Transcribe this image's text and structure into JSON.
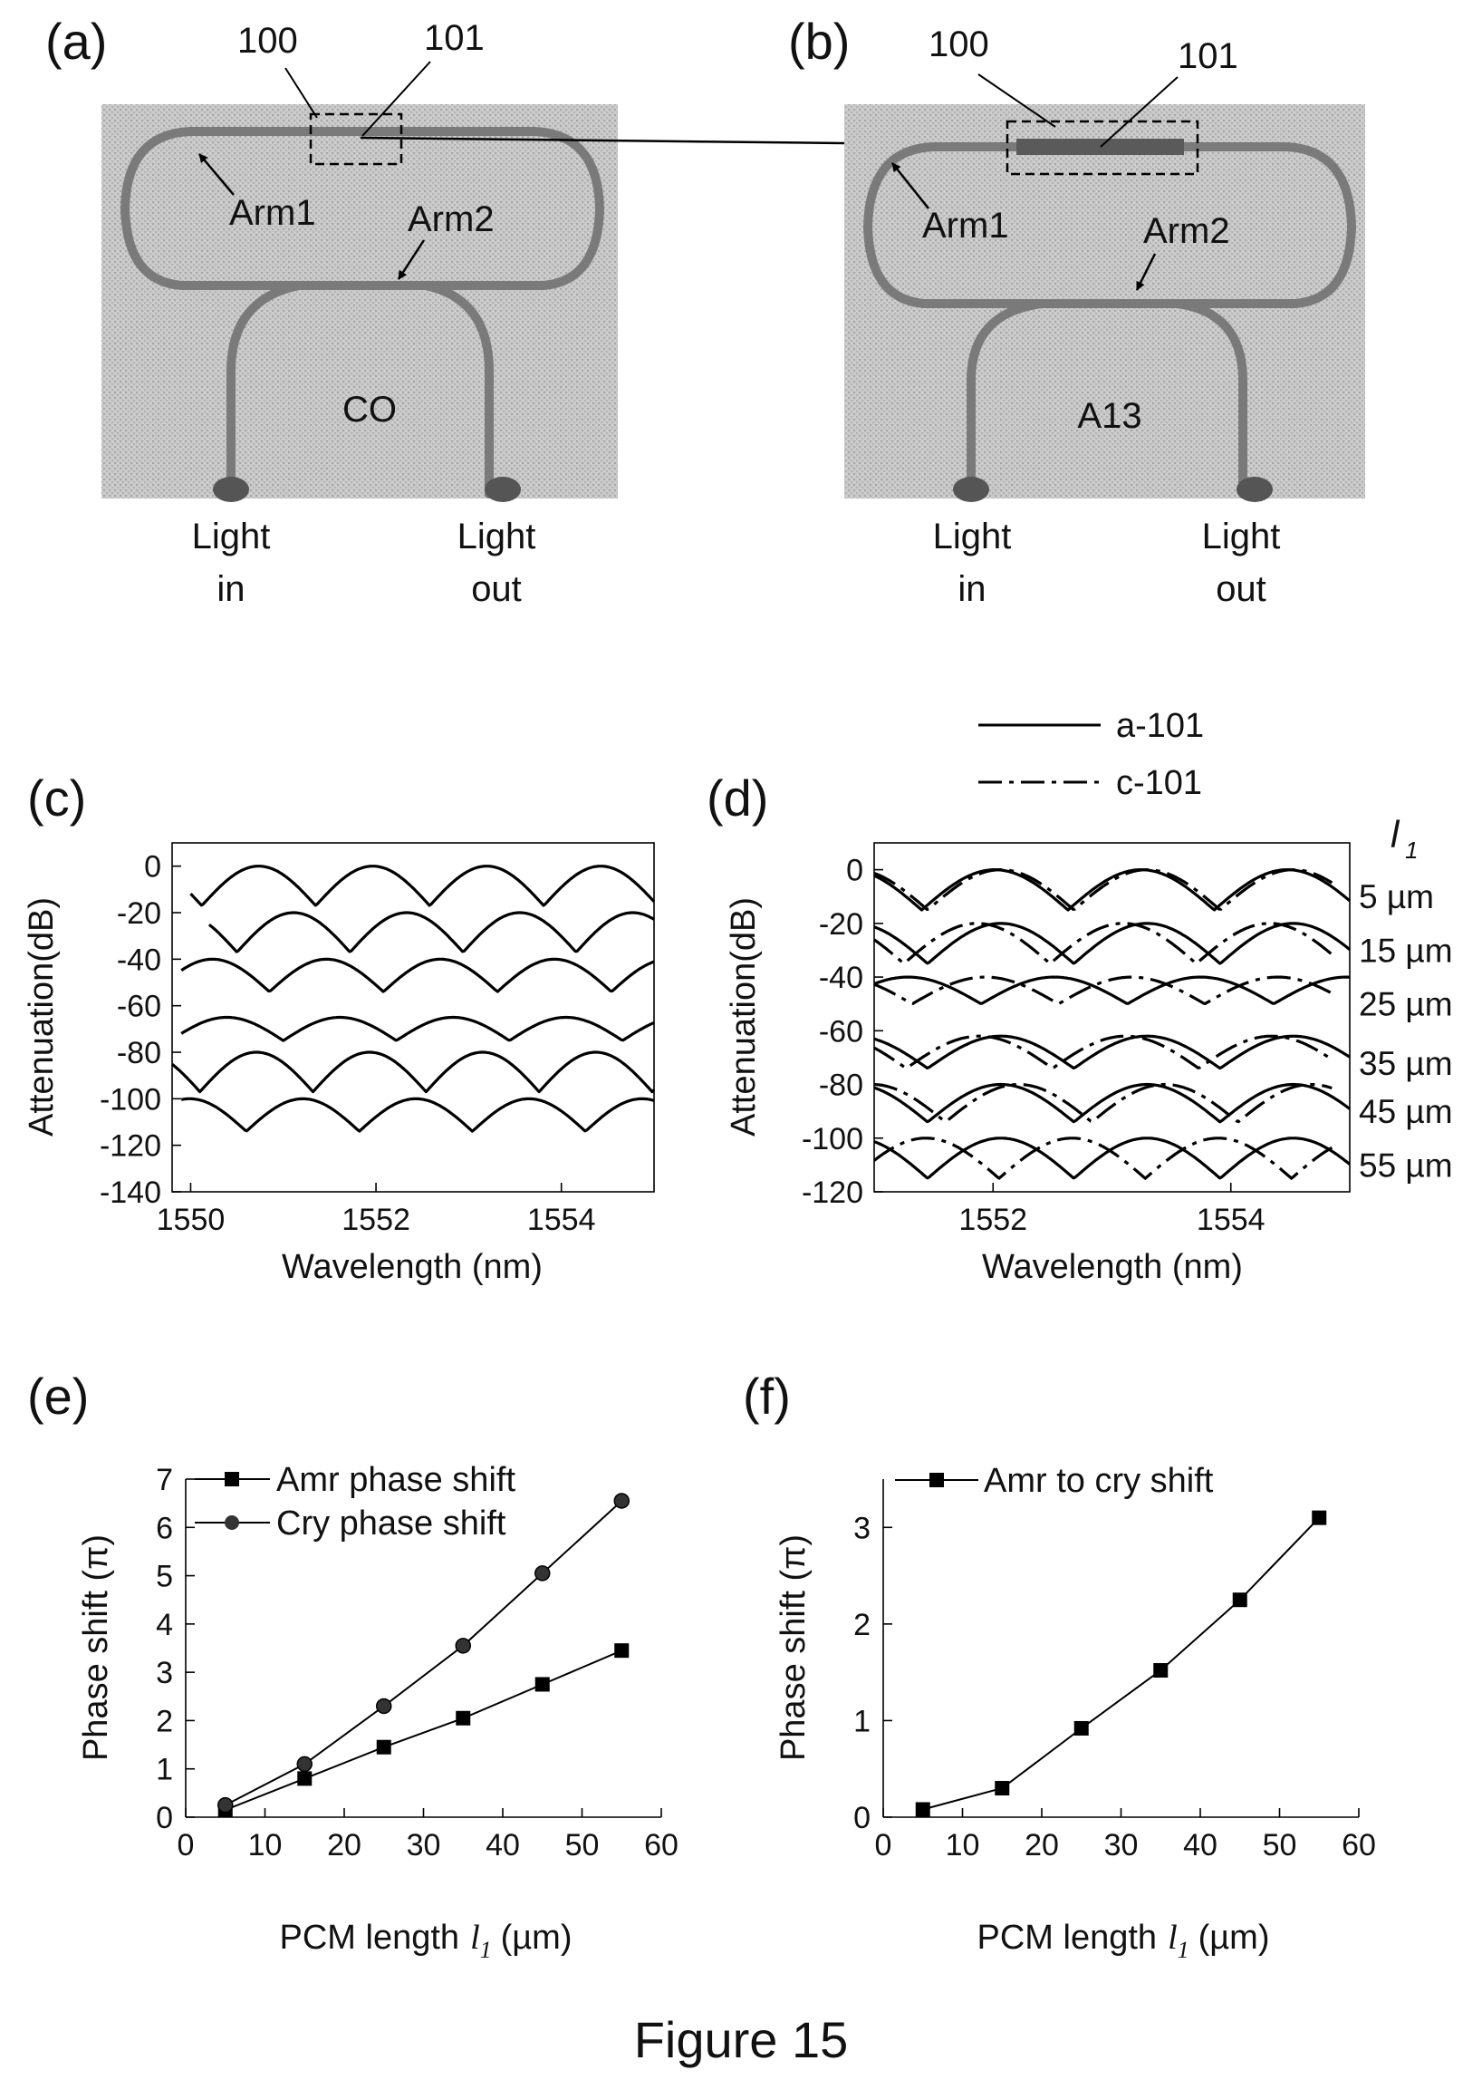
{
  "figure": {
    "caption": "Figure 15",
    "panel_labels": [
      "(a)",
      "(b)",
      "(c)",
      "(d)",
      "(e)",
      "(f)"
    ]
  },
  "micrographs": [
    {
      "panel": "(a)",
      "callouts": [
        "100",
        "101"
      ],
      "arm1": "Arm1",
      "arm2": "Arm2",
      "state_label": "CO",
      "port_in": [
        "Light",
        "in"
      ],
      "port_out": [
        "Light",
        "out"
      ]
    },
    {
      "panel": "(b)",
      "callouts": [
        "100",
        "101"
      ],
      "arm1": "Arm1",
      "arm2": "Arm2",
      "state_label": "A13",
      "port_in": [
        "Light",
        "in"
      ],
      "port_out": [
        "Light",
        "out"
      ]
    }
  ],
  "chart_data": [
    {
      "panel": "(c)",
      "type": "line",
      "xlabel": "Wavelength (nm)",
      "ylabel": "Attenuation(dB)",
      "xlim": [
        1549.8,
        1555.0
      ],
      "ylim": [
        -140,
        10
      ],
      "xticks": [
        1550,
        1552,
        1554
      ],
      "yticks": [
        0,
        -20,
        -40,
        -60,
        -80,
        -100,
        -120,
        -140
      ],
      "series": [
        {
          "offset": 0,
          "start": 1550.0,
          "fsr": 1.23,
          "dip": 1551.35,
          "depth": 17
        },
        {
          "offset": -20,
          "start": 1550.2,
          "fsr": 1.22,
          "dip": 1550.5,
          "depth": 17
        },
        {
          "offset": -40,
          "start": 1549.9,
          "fsr": 1.23,
          "dip": 1550.85,
          "depth": 14
        },
        {
          "offset": -65,
          "start": 1549.9,
          "fsr": 1.22,
          "dip": 1551.0,
          "depth": 10
        },
        {
          "offset": -80,
          "start": 1549.8,
          "fsr": 1.22,
          "dip": 1550.1,
          "depth": 17
        },
        {
          "offset": -100,
          "start": 1549.9,
          "fsr": 1.22,
          "dip": 1550.6,
          "depth": 14
        }
      ]
    },
    {
      "panel": "(d)",
      "type": "line",
      "xlabel": "Wavelength (nm)",
      "ylabel": "Attenuation(dB)",
      "xlim": [
        1551.0,
        1555.0
      ],
      "ylim": [
        -120,
        10
      ],
      "xticks": [
        1552,
        1554
      ],
      "yticks": [
        0,
        -20,
        -40,
        -60,
        -80,
        -100,
        -120
      ],
      "legend": [
        {
          "label": "a-101",
          "style": "solid"
        },
        {
          "label": "c-101",
          "style": "dash-dot"
        }
      ],
      "row_axis_label": "l",
      "row_axis_subscript": "1",
      "rows": [
        {
          "label": "5 µm",
          "offset": 0,
          "fsr": 1.23,
          "a_dip": 1551.4,
          "c_dip": 1551.45,
          "depth": 15
        },
        {
          "label": "15 µm",
          "offset": -20,
          "fsr": 1.23,
          "a_dip": 1551.45,
          "c_dip": 1551.25,
          "depth": 15
        },
        {
          "label": "25 µm",
          "offset": -40,
          "fsr": 1.23,
          "a_dip": 1551.9,
          "c_dip": 1552.55,
          "depth": 10
        },
        {
          "label": "35 µm",
          "offset": -62,
          "fsr": 1.23,
          "a_dip": 1551.45,
          "c_dip": 1552.5,
          "depth": 12
        },
        {
          "label": "45 µm",
          "offset": -80,
          "fsr": 1.23,
          "a_dip": 1551.45,
          "c_dip": 1551.6,
          "depth": 14
        },
        {
          "label": "55 µm",
          "offset": -100,
          "fsr": 1.23,
          "a_dip": 1551.45,
          "c_dip": 1552.05,
          "depth": 15
        }
      ]
    },
    {
      "panel": "(e)",
      "type": "line",
      "xlabel": "PCM length",
      "xlabel_var": "l",
      "xlabel_sub": "1",
      "xlabel_unit": "(µm)",
      "ylabel": "Phase shift (π)",
      "xlim": [
        0,
        60
      ],
      "ylim": [
        0,
        7
      ],
      "xticks": [
        0,
        10,
        20,
        30,
        40,
        50,
        60
      ],
      "yticks": [
        0,
        1,
        2,
        3,
        4,
        5,
        6,
        7
      ],
      "x": [
        5,
        15,
        25,
        35,
        45,
        55
      ],
      "series": [
        {
          "name": "Amr phase shift",
          "marker": "square",
          "values": [
            0.15,
            0.8,
            1.45,
            2.05,
            2.75,
            3.45
          ]
        },
        {
          "name": "Cry phase shift",
          "marker": "circle",
          "values": [
            0.25,
            1.1,
            2.3,
            3.55,
            5.05,
            6.55
          ]
        }
      ]
    },
    {
      "panel": "(f)",
      "type": "line",
      "xlabel": "PCM length",
      "xlabel_var": "l",
      "xlabel_sub": "1",
      "xlabel_unit": "(µm)",
      "ylabel": "Phase shift (π)",
      "xlim": [
        0,
        60
      ],
      "ylim": [
        0,
        3.5
      ],
      "xticks": [
        0,
        10,
        20,
        30,
        40,
        50,
        60
      ],
      "yticks": [
        0,
        1,
        2,
        3
      ],
      "x": [
        5,
        15,
        25,
        35,
        45,
        55
      ],
      "series": [
        {
          "name": "Amr to cry shift",
          "marker": "square",
          "values": [
            0.08,
            0.3,
            0.92,
            1.52,
            2.25,
            3.1
          ]
        }
      ]
    }
  ]
}
